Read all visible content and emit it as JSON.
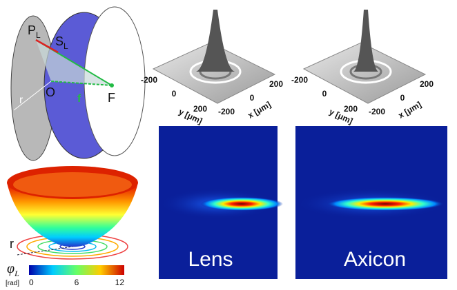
{
  "diagram": {
    "point_p": "P",
    "point_p_sub": "L",
    "surface_s": "S",
    "surface_s_sub": "L",
    "radius": "r",
    "origin": "O",
    "focal_length": "f",
    "focus": "F"
  },
  "phase_plot": {
    "radius": "r",
    "symbol": "φ",
    "symbol_sub": "L",
    "unit": "[rad]",
    "colorbar_ticks": [
      0,
      6,
      12
    ]
  },
  "surface_plots": [
    {
      "y_label": "y [μm]",
      "x_label": "x [μm]",
      "y_ticks": [
        "-200",
        "0",
        "200"
      ],
      "x_ticks": [
        "-200",
        "0",
        "200"
      ]
    },
    {
      "y_label": "y [μm]",
      "x_label": "x [μm]",
      "y_ticks": [
        "-200",
        "0",
        "200"
      ],
      "x_ticks": [
        "-200",
        "0",
        "200"
      ]
    }
  ],
  "intensity_maps": [
    {
      "label": "Lens"
    },
    {
      "label": "Axicon"
    }
  ]
}
